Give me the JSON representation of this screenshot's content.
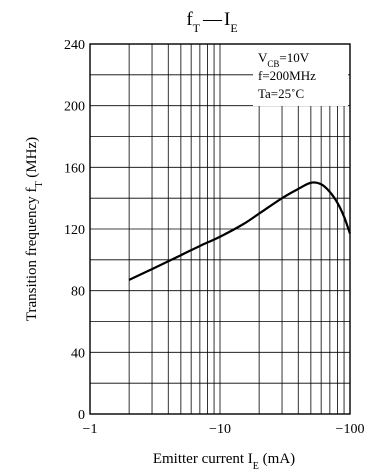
{
  "chart_data": {
    "type": "line",
    "title": {
      "main": "f",
      "main_sub": "T",
      "sep": "—",
      "second": "I",
      "second_sub": "E"
    },
    "ylabel": {
      "main": "Transition frequency  f",
      "sub": "T",
      "unit": " (MHz)"
    },
    "xlabel": {
      "main": "Emitter current  I",
      "sub": "E",
      "unit": " (mA)"
    },
    "x_scale": "log",
    "x_range": [
      -1,
      -100
    ],
    "x_ticks": [
      "−1",
      "−10",
      "−100"
    ],
    "y_range": [
      0,
      240
    ],
    "y_ticks": [
      "0",
      "40",
      "80",
      "120",
      "160",
      "200",
      "240"
    ],
    "grid": true,
    "legend_position": "top-right",
    "conditions": {
      "vcb": {
        "main": "V",
        "sub": "CB",
        "rest": "=10V"
      },
      "f": "f=200MHz",
      "ta": "Ta=25˚C"
    },
    "series": [
      {
        "x": [
          -2,
          -3,
          -5,
          -7,
          -10,
          -15,
          -20,
          -30,
          -40,
          -50,
          -60,
          -70,
          -80,
          -90,
          -100
        ],
        "y": [
          87,
          94,
          103,
          109,
          115,
          123,
          130,
          140,
          146,
          150,
          149,
          144,
          137,
          128,
          117
        ]
      }
    ]
  }
}
